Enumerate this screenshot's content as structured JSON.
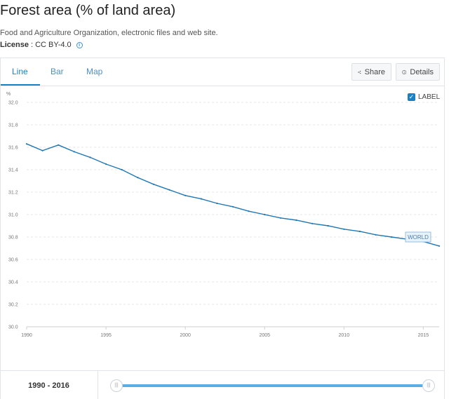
{
  "header": {
    "title": "Forest area (% of land area)",
    "source": "Food and Agriculture Organization, electronic files and web site.",
    "license_label": "License",
    "license_value": ": CC BY-4.0",
    "info_icon": "info-icon"
  },
  "tabs": [
    {
      "label": "Line",
      "active": true
    },
    {
      "label": "Bar",
      "active": false
    },
    {
      "label": "Map",
      "active": false
    }
  ],
  "toolbar": {
    "share_label": "Share",
    "share_icon": "share-icon",
    "details_label": "Details",
    "details_icon": "info-circle-icon"
  },
  "label_toggle": {
    "label": "LABEL",
    "checked": true
  },
  "chart_data": {
    "type": "line",
    "ylabel": "%",
    "ylim": [
      30.0,
      32.0
    ],
    "yticks": [
      "32.0",
      "31.8",
      "31.6",
      "31.4",
      "31.2",
      "31.0",
      "30.8",
      "30.6",
      "30.4",
      "30.2",
      "30.0"
    ],
    "xlim": [
      1990,
      2016
    ],
    "xticks": [
      "1990",
      "1995",
      "2000",
      "2005",
      "2010",
      "2015"
    ],
    "grid": true,
    "color": "#1f77b4",
    "series": [
      {
        "name": "WORLD",
        "x": [
          1990,
          1991,
          1992,
          1993,
          1994,
          1995,
          1996,
          1997,
          1998,
          1999,
          2000,
          2001,
          2002,
          2003,
          2004,
          2005,
          2006,
          2007,
          2008,
          2009,
          2010,
          2011,
          2012,
          2013,
          2014,
          2015,
          2016
        ],
        "values": [
          31.63,
          31.57,
          31.62,
          31.56,
          31.51,
          31.45,
          31.4,
          31.33,
          31.27,
          31.22,
          31.17,
          31.14,
          31.1,
          31.07,
          31.03,
          31.0,
          30.97,
          30.95,
          30.92,
          30.9,
          30.87,
          30.85,
          30.82,
          30.8,
          30.78,
          30.76,
          30.72
        ]
      }
    ]
  },
  "range": {
    "label": "1990 - 2016",
    "handle_left": "|||",
    "handle_right": "|||"
  }
}
